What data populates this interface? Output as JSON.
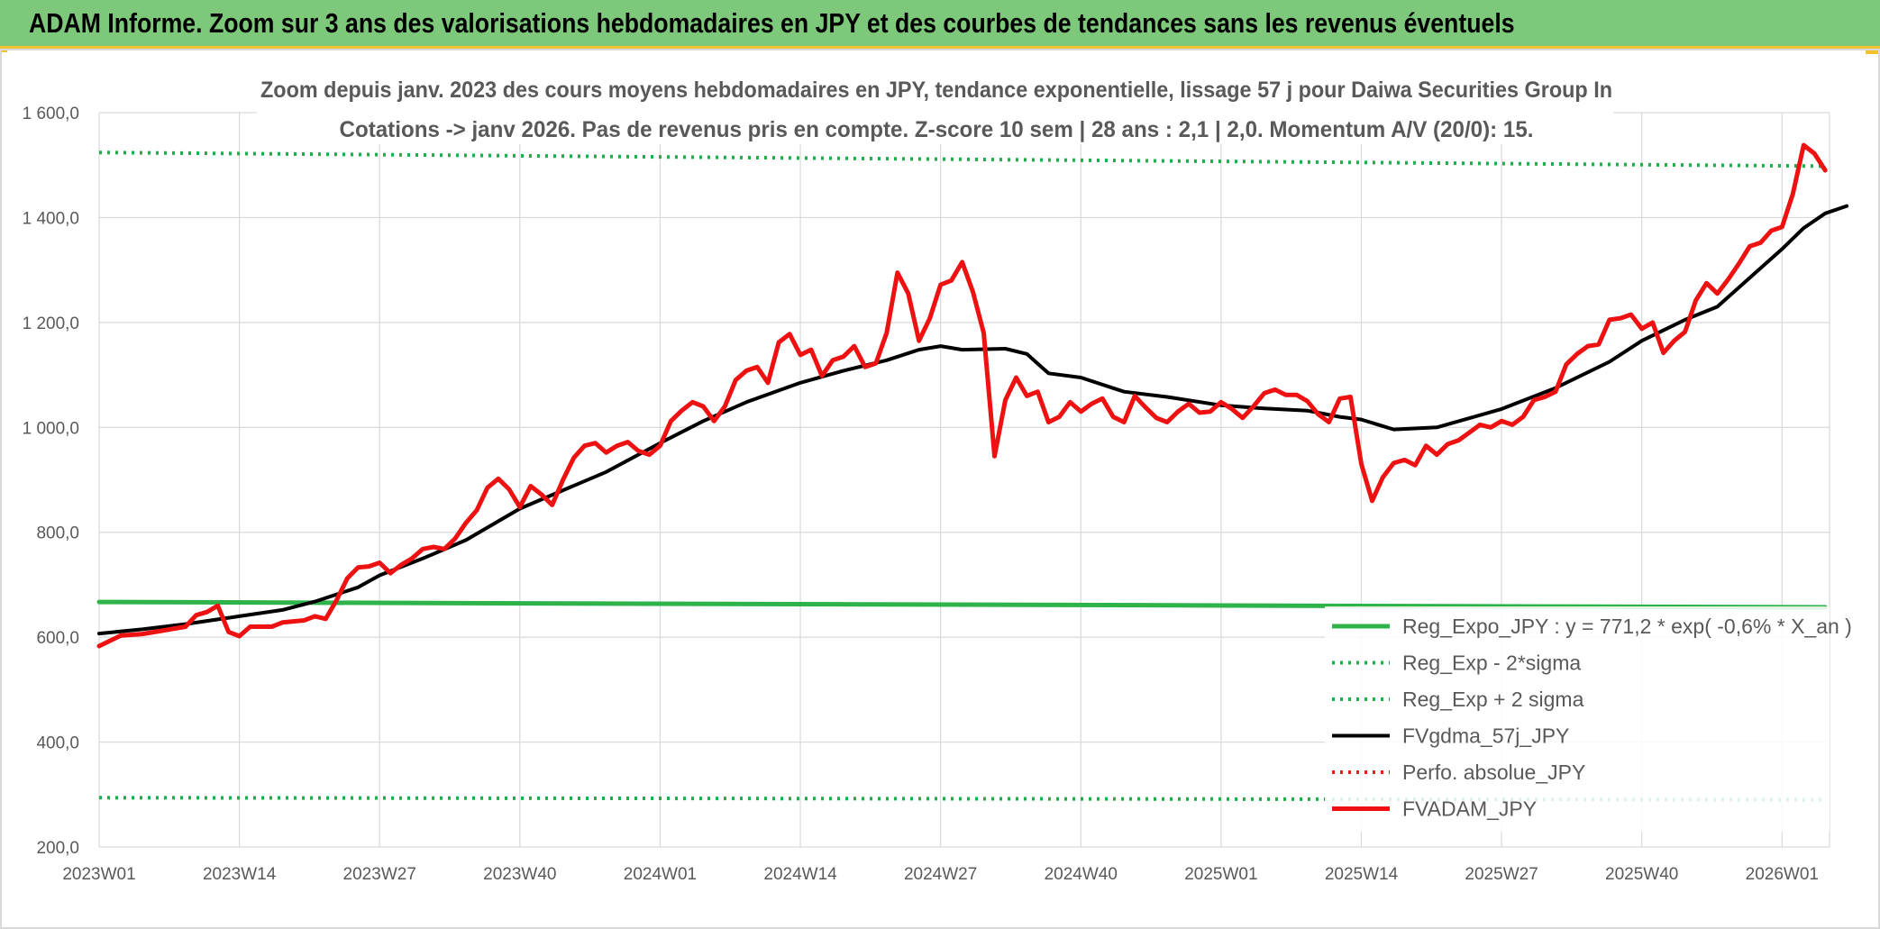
{
  "header": {
    "title": "ADAM Informe. Zoom sur 3 ans des valorisations hebdomadaires en JPY et des courbes de tendances sans les revenus éventuels"
  },
  "chart_data": {
    "type": "line",
    "title_lines": [
      "Zoom depuis janv. 2023 des cours moyens hebdomadaires en JPY, tendance exponentielle, lissage 57 j pour Daiwa Securities Group In",
      "Cotations -> janv 2026. Pas de revenus pris en compte. Z-score 10 sem | 28 ans : 2,1 | 2,0. Momentum A/V (20/0): 15."
    ],
    "xlabel": "",
    "ylabel": "",
    "ylim": [
      200,
      1600
    ],
    "y_ticks": [
      "1 600,0",
      "1 400,0",
      "1 200,0",
      "1 000,0",
      "800,0",
      "600,0",
      "400,0",
      "200,0"
    ],
    "y_tick_values": [
      1600,
      1400,
      1200,
      1000,
      800,
      600,
      400,
      200
    ],
    "x_tick_labels": [
      "2023W01",
      "2023W14",
      "2023W27",
      "2023W40",
      "2024W01",
      "2024W14",
      "2024W27",
      "2024W40",
      "2025W01",
      "2025W14",
      "2025W27",
      "2025W40",
      "2026W01"
    ],
    "x_tick_index": [
      0,
      13,
      26,
      39,
      52,
      65,
      78,
      91,
      104,
      117,
      130,
      143,
      156
    ],
    "week_count": 161,
    "grid": true,
    "legend_position": "bottom-right",
    "colors": {
      "reg_expo": "#2db34a",
      "sigma_minus": "#1fae4b",
      "sigma_plus": "#1fae4b",
      "fvgdma": "#000000",
      "perfo": "#e32119",
      "fvadam": "#ee1111",
      "grid": "#d9d9d9"
    },
    "series": [
      {
        "name": "Reg_Expo_JPY : y = 771,2 * exp( -0,6% * X_an )",
        "key": "reg_expo",
        "style": "solid-thick",
        "points": [
          [
            0,
            667
          ],
          [
            160,
            657
          ]
        ]
      },
      {
        "name": "Reg_Exp - 2*sigma",
        "key": "sigma_minus",
        "style": "dotted",
        "points": [
          [
            0,
            294
          ],
          [
            160,
            290
          ]
        ]
      },
      {
        "name": "Reg_Exp + 2 sigma",
        "key": "sigma_plus",
        "style": "dotted",
        "points": [
          [
            0,
            1524
          ],
          [
            160,
            1498
          ]
        ]
      },
      {
        "name": "FVgdma_57j_JPY",
        "key": "fvgdma",
        "style": "solid",
        "points": [
          [
            0,
            607
          ],
          [
            4,
            615
          ],
          [
            8,
            625
          ],
          [
            13,
            640
          ],
          [
            17,
            652
          ],
          [
            20,
            668
          ],
          [
            24,
            695
          ],
          [
            26,
            718
          ],
          [
            30,
            750
          ],
          [
            34,
            785
          ],
          [
            39,
            845
          ],
          [
            43,
            880
          ],
          [
            47,
            915
          ],
          [
            52,
            970
          ],
          [
            56,
            1012
          ],
          [
            60,
            1048
          ],
          [
            65,
            1085
          ],
          [
            69,
            1108
          ],
          [
            73,
            1128
          ],
          [
            76,
            1148
          ],
          [
            78,
            1155
          ],
          [
            80,
            1148
          ],
          [
            84,
            1150
          ],
          [
            86,
            1140
          ],
          [
            88,
            1103
          ],
          [
            91,
            1095
          ],
          [
            95,
            1068
          ],
          [
            99,
            1058
          ],
          [
            104,
            1042
          ],
          [
            108,
            1036
          ],
          [
            112,
            1032
          ],
          [
            115,
            1020
          ],
          [
            117,
            1015
          ],
          [
            120,
            996
          ],
          [
            124,
            1000
          ],
          [
            130,
            1035
          ],
          [
            135,
            1075
          ],
          [
            140,
            1125
          ],
          [
            143,
            1165
          ],
          [
            147,
            1205
          ],
          [
            150,
            1230
          ],
          [
            153,
            1285
          ],
          [
            156,
            1340
          ],
          [
            158,
            1380
          ],
          [
            160,
            1408
          ],
          [
            162,
            1422
          ]
        ]
      },
      {
        "name": "Perfo. absolue_JPY",
        "key": "perfo",
        "style": "dotted",
        "points": []
      },
      {
        "name": "FVADAM_JPY",
        "key": "fvadam",
        "style": "solid-thick",
        "points": [
          [
            0,
            583
          ],
          [
            2,
            603
          ],
          [
            4,
            606
          ],
          [
            6,
            613
          ],
          [
            8,
            620
          ],
          [
            9,
            642
          ],
          [
            10,
            648
          ],
          [
            11,
            660
          ],
          [
            12,
            610
          ],
          [
            13,
            602
          ],
          [
            14,
            620
          ],
          [
            16,
            620
          ],
          [
            17,
            628
          ],
          [
            19,
            632
          ],
          [
            20,
            640
          ],
          [
            21,
            635
          ],
          [
            22,
            670
          ],
          [
            23,
            712
          ],
          [
            24,
            733
          ],
          [
            25,
            735
          ],
          [
            26,
            742
          ],
          [
            27,
            722
          ],
          [
            28,
            738
          ],
          [
            29,
            750
          ],
          [
            30,
            768
          ],
          [
            31,
            772
          ],
          [
            32,
            768
          ],
          [
            33,
            788
          ],
          [
            34,
            818
          ],
          [
            35,
            842
          ],
          [
            36,
            885
          ],
          [
            37,
            902
          ],
          [
            38,
            882
          ],
          [
            39,
            848
          ],
          [
            40,
            888
          ],
          [
            41,
            872
          ],
          [
            42,
            852
          ],
          [
            43,
            900
          ],
          [
            44,
            942
          ],
          [
            45,
            965
          ],
          [
            46,
            970
          ],
          [
            47,
            952
          ],
          [
            48,
            965
          ],
          [
            49,
            972
          ],
          [
            50,
            955
          ],
          [
            51,
            948
          ],
          [
            52,
            965
          ],
          [
            53,
            1012
          ],
          [
            54,
            1032
          ],
          [
            55,
            1048
          ],
          [
            56,
            1040
          ],
          [
            57,
            1012
          ],
          [
            58,
            1040
          ],
          [
            59,
            1090
          ],
          [
            60,
            1108
          ],
          [
            61,
            1115
          ],
          [
            62,
            1085
          ],
          [
            63,
            1162
          ],
          [
            64,
            1178
          ],
          [
            65,
            1138
          ],
          [
            66,
            1148
          ],
          [
            67,
            1098
          ],
          [
            68,
            1128
          ],
          [
            69,
            1135
          ],
          [
            70,
            1155
          ],
          [
            71,
            1115
          ],
          [
            72,
            1122
          ],
          [
            73,
            1180
          ],
          [
            74,
            1295
          ],
          [
            75,
            1255
          ],
          [
            76,
            1165
          ],
          [
            77,
            1208
          ],
          [
            78,
            1272
          ],
          [
            79,
            1280
          ],
          [
            80,
            1315
          ],
          [
            81,
            1258
          ],
          [
            82,
            1180
          ],
          [
            83,
            945
          ],
          [
            84,
            1052
          ],
          [
            85,
            1095
          ],
          [
            86,
            1060
          ],
          [
            87,
            1068
          ],
          [
            88,
            1010
          ],
          [
            89,
            1020
          ],
          [
            90,
            1048
          ],
          [
            91,
            1030
          ],
          [
            92,
            1045
          ],
          [
            93,
            1055
          ],
          [
            94,
            1020
          ],
          [
            95,
            1010
          ],
          [
            96,
            1060
          ],
          [
            97,
            1038
          ],
          [
            98,
            1018
          ],
          [
            99,
            1010
          ],
          [
            100,
            1030
          ],
          [
            101,
            1045
          ],
          [
            102,
            1028
          ],
          [
            103,
            1030
          ],
          [
            104,
            1048
          ],
          [
            105,
            1035
          ],
          [
            106,
            1018
          ],
          [
            107,
            1040
          ],
          [
            108,
            1065
          ],
          [
            109,
            1072
          ],
          [
            110,
            1062
          ],
          [
            111,
            1062
          ],
          [
            112,
            1050
          ],
          [
            113,
            1025
          ],
          [
            114,
            1010
          ],
          [
            115,
            1055
          ],
          [
            116,
            1058
          ],
          [
            117,
            930
          ],
          [
            118,
            860
          ],
          [
            119,
            905
          ],
          [
            120,
            932
          ],
          [
            121,
            938
          ],
          [
            122,
            928
          ],
          [
            123,
            965
          ],
          [
            124,
            948
          ],
          [
            125,
            968
          ],
          [
            126,
            975
          ],
          [
            127,
            990
          ],
          [
            128,
            1005
          ],
          [
            129,
            1000
          ],
          [
            130,
            1012
          ],
          [
            131,
            1005
          ],
          [
            132,
            1020
          ],
          [
            133,
            1052
          ],
          [
            134,
            1058
          ],
          [
            135,
            1068
          ],
          [
            136,
            1120
          ],
          [
            137,
            1140
          ],
          [
            138,
            1155
          ],
          [
            139,
            1158
          ],
          [
            140,
            1205
          ],
          [
            141,
            1208
          ],
          [
            142,
            1215
          ],
          [
            143,
            1188
          ],
          [
            144,
            1200
          ],
          [
            145,
            1142
          ],
          [
            146,
            1165
          ],
          [
            147,
            1182
          ],
          [
            148,
            1242
          ],
          [
            149,
            1275
          ],
          [
            150,
            1255
          ],
          [
            151,
            1282
          ],
          [
            152,
            1312
          ],
          [
            153,
            1345
          ],
          [
            154,
            1352
          ],
          [
            155,
            1375
          ],
          [
            156,
            1382
          ],
          [
            157,
            1445
          ],
          [
            158,
            1538
          ],
          [
            159,
            1522
          ],
          [
            160,
            1490
          ]
        ]
      }
    ]
  }
}
